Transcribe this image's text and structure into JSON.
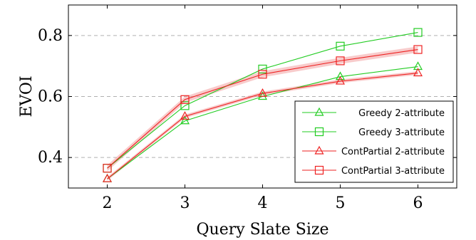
{
  "chart_data": {
    "type": "line",
    "xlabel": "Query Slate Size",
    "ylabel": "EVOI",
    "x": [
      2,
      3,
      4,
      5,
      6
    ],
    "x_ticks": [
      "2",
      "3",
      "4",
      "5",
      "6"
    ],
    "y_ticks": [
      "0.4",
      "0.6",
      "0.8"
    ],
    "y_tick_values": [
      0.4,
      0.6,
      0.8
    ],
    "xlim": [
      1.5,
      6.5
    ],
    "ylim": [
      0.3,
      0.9
    ],
    "grid": "horizontal dashed",
    "legend_position": "lower-right",
    "series": [
      {
        "name": "Greedy 2-attribute",
        "color": "#22cc22",
        "marker": "triangle",
        "values": [
          0.33,
          0.52,
          0.6,
          0.665,
          0.698
        ],
        "band": 0
      },
      {
        "name": "Greedy 3-attribute",
        "color": "#22cc22",
        "marker": "square",
        "values": [
          0.365,
          0.57,
          0.69,
          0.765,
          0.81
        ],
        "band": 0
      },
      {
        "name": "ContPartial 2-attribute",
        "color": "#ee2222",
        "marker": "triangle",
        "values": [
          0.33,
          0.535,
          0.61,
          0.65,
          0.677
        ],
        "band": 0.006
      },
      {
        "name": "ContPartial 3-attribute",
        "color": "#ee2222",
        "marker": "square",
        "values": [
          0.365,
          0.59,
          0.673,
          0.717,
          0.754
        ],
        "band": 0.01
      }
    ]
  }
}
